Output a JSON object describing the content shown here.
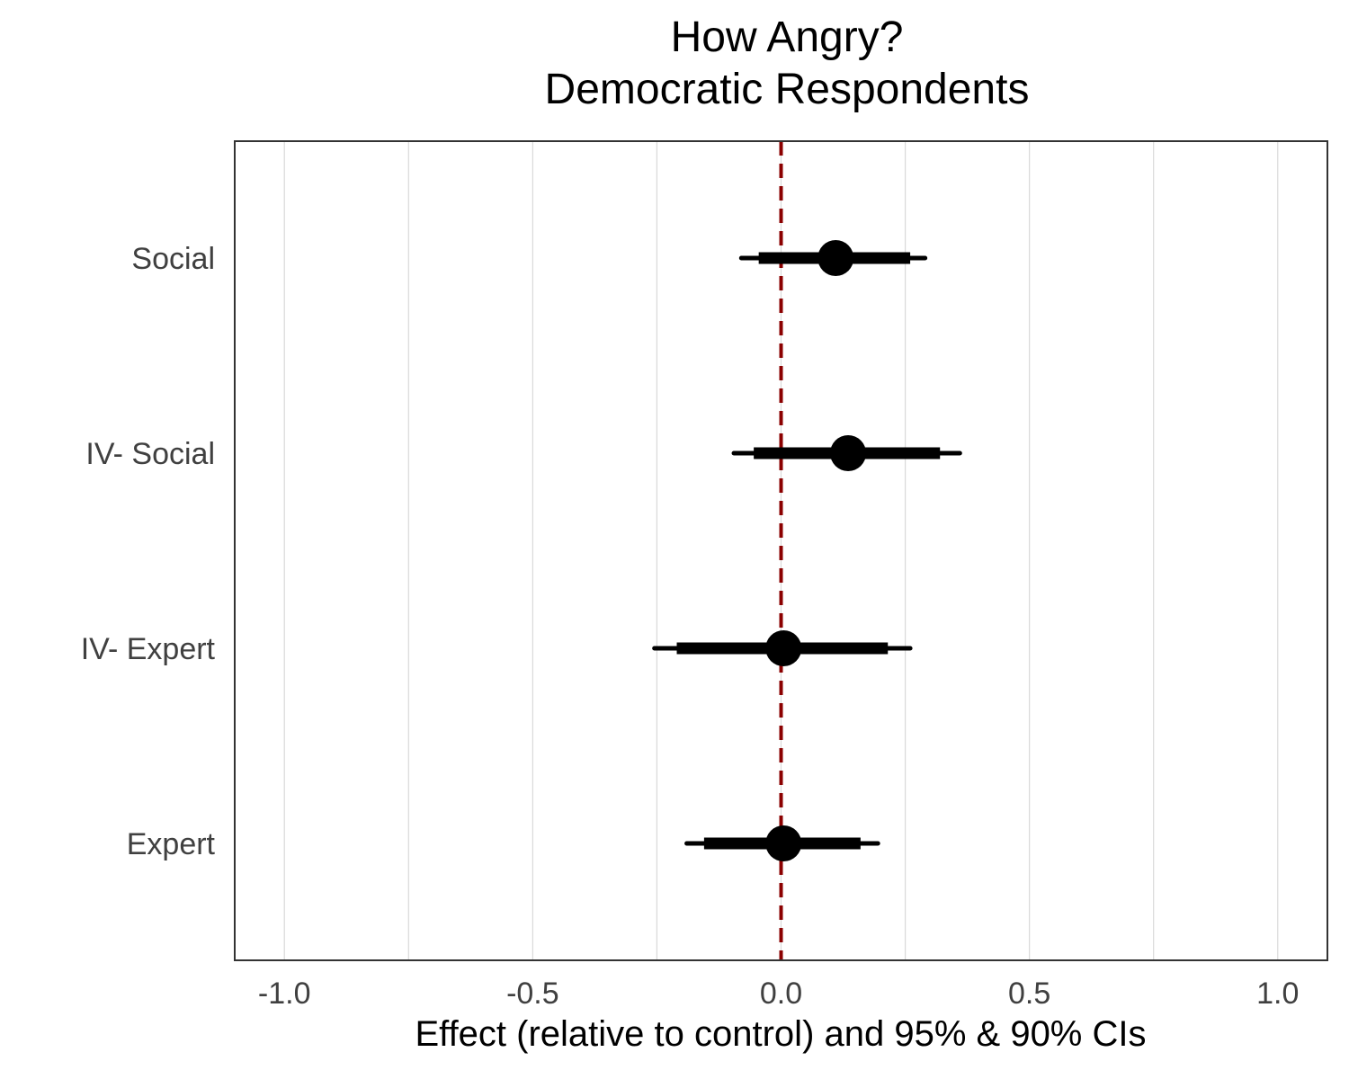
{
  "chart_data": {
    "type": "dot-interval",
    "title_lines": [
      "How Angry?",
      "Democratic Respondents"
    ],
    "xlabel": "Effect (relative to control) and 95% & 90% CIs",
    "ylabel": "",
    "xlim": [
      -1.1,
      1.1
    ],
    "x_ticks": [
      -1.0,
      -0.5,
      0.0,
      0.5,
      1.0
    ],
    "x_tick_labels": [
      "-1.0",
      "-0.5",
      "0.0",
      "0.5",
      "1.0"
    ],
    "minor_gridlines": [
      -0.75,
      -0.25,
      0.25,
      0.75
    ],
    "reference_line": {
      "x": 0,
      "color": "#8b0000",
      "style": "dashed"
    },
    "categories": [
      "Social",
      "IV- Social",
      "IV- Expert",
      "Expert"
    ],
    "estimates": [
      {
        "category": "Social",
        "estimate": 0.11,
        "ci95": [
          -0.08,
          0.29
        ],
        "ci90": [
          -0.045,
          0.26
        ]
      },
      {
        "category": "IV- Social",
        "estimate": 0.135,
        "ci95": [
          -0.095,
          0.36
        ],
        "ci90": [
          -0.055,
          0.32
        ]
      },
      {
        "category": "IV- Expert",
        "estimate": 0.005,
        "ci95": [
          -0.255,
          0.26
        ],
        "ci90": [
          -0.21,
          0.215
        ]
      },
      {
        "category": "Expert",
        "estimate": 0.005,
        "ci95": [
          -0.19,
          0.195
        ],
        "ci90": [
          -0.155,
          0.16
        ]
      }
    ],
    "grid": true,
    "colors": {
      "points": "#000000",
      "gridlines": "#d9d9d9",
      "reference": "#8b0000",
      "frame": "#333333"
    }
  }
}
